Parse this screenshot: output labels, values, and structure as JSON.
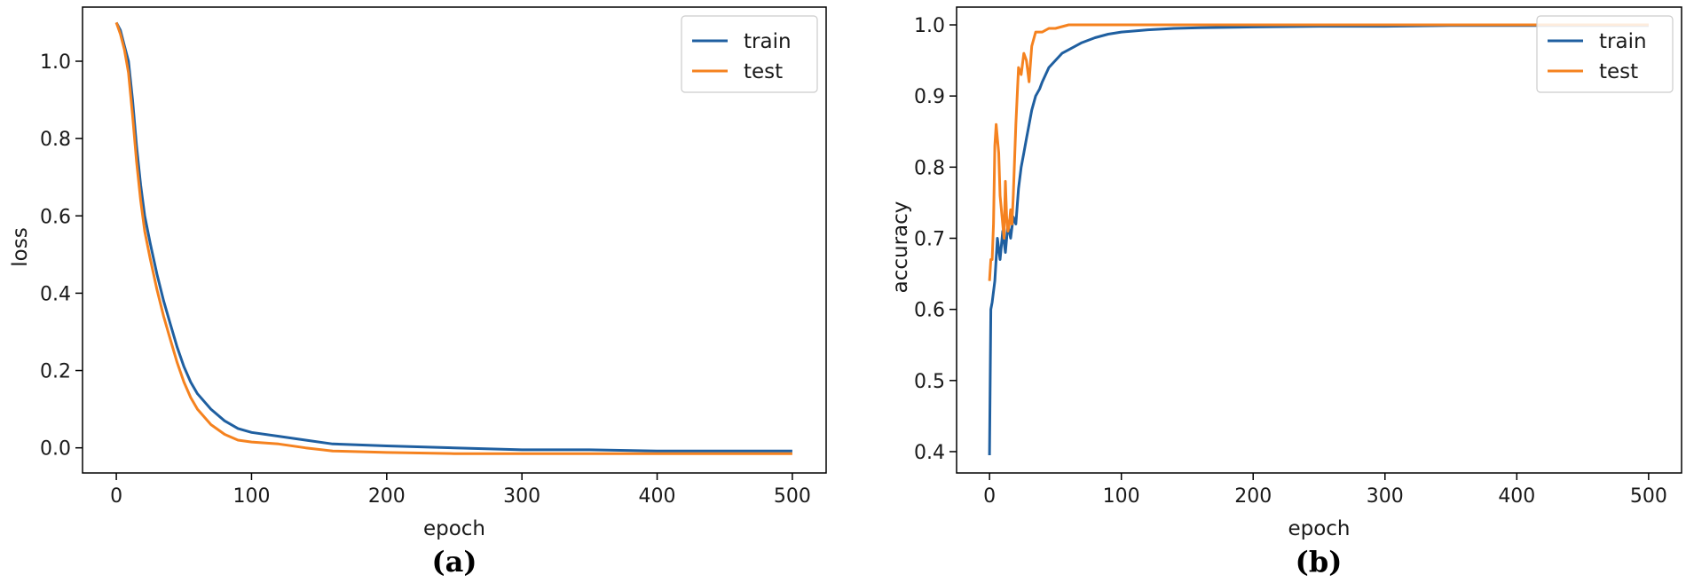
{
  "chart_data": [
    {
      "id": "a",
      "type": "line",
      "caption": "(a)",
      "xlabel": "epoch",
      "ylabel": "loss",
      "xlim": [
        -25,
        525
      ],
      "ylim": [
        -0.065,
        1.14
      ],
      "xticks": [
        0,
        100,
        200,
        300,
        400,
        500
      ],
      "xtick_labels": [
        "0",
        "100",
        "200",
        "300",
        "400",
        "500"
      ],
      "yticks": [
        0.0,
        0.2,
        0.4,
        0.6,
        0.8,
        1.0
      ],
      "ytick_labels": [
        "0.0",
        "0.2",
        "0.4",
        "0.6",
        "0.8",
        "1.0"
      ],
      "legend_position": "top-right",
      "series": [
        {
          "name": "train",
          "color": "#1f5fa0",
          "x": [
            0,
            3,
            6,
            9,
            12,
            15,
            18,
            21,
            25,
            30,
            35,
            40,
            45,
            50,
            55,
            60,
            70,
            80,
            90,
            100,
            120,
            140,
            160,
            200,
            250,
            300,
            350,
            400,
            450,
            500
          ],
          "y": [
            1.1,
            1.08,
            1.04,
            1.0,
            0.9,
            0.78,
            0.68,
            0.6,
            0.53,
            0.45,
            0.38,
            0.32,
            0.26,
            0.21,
            0.17,
            0.14,
            0.1,
            0.07,
            0.05,
            0.04,
            0.03,
            0.02,
            0.01,
            0.005,
            0.0,
            -0.005,
            -0.005,
            -0.008,
            -0.008,
            -0.008
          ]
        },
        {
          "name": "test",
          "color": "#f5821f",
          "x": [
            0,
            3,
            6,
            9,
            12,
            15,
            18,
            21,
            25,
            30,
            35,
            40,
            45,
            50,
            55,
            60,
            70,
            80,
            90,
            100,
            120,
            140,
            160,
            200,
            250,
            300,
            350,
            400,
            450,
            500
          ],
          "y": [
            1.1,
            1.07,
            1.03,
            0.97,
            0.86,
            0.74,
            0.64,
            0.56,
            0.49,
            0.41,
            0.34,
            0.28,
            0.22,
            0.17,
            0.13,
            0.1,
            0.06,
            0.035,
            0.02,
            0.015,
            0.01,
            0.0,
            -0.008,
            -0.012,
            -0.015,
            -0.015,
            -0.015,
            -0.015,
            -0.015,
            -0.015
          ]
        }
      ]
    },
    {
      "id": "b",
      "type": "line",
      "caption": "(b)",
      "xlabel": "epoch",
      "ylabel": "accuracy",
      "xlim": [
        -25,
        525
      ],
      "ylim": [
        0.37,
        1.025
      ],
      "xticks": [
        0,
        100,
        200,
        300,
        400,
        500
      ],
      "xtick_labels": [
        "0",
        "100",
        "200",
        "300",
        "400",
        "500"
      ],
      "yticks": [
        0.4,
        0.5,
        0.6,
        0.7,
        0.8,
        0.9,
        1.0
      ],
      "ytick_labels": [
        "0.4",
        "0.5",
        "0.6",
        "0.7",
        "0.8",
        "0.9",
        "1.0"
      ],
      "legend_position": "top-right",
      "series": [
        {
          "name": "train",
          "color": "#1f5fa0",
          "x": [
            0,
            1,
            2,
            4,
            6,
            8,
            10,
            12,
            14,
            16,
            18,
            20,
            22,
            24,
            26,
            28,
            30,
            32,
            35,
            38,
            40,
            45,
            50,
            55,
            60,
            70,
            80,
            90,
            100,
            120,
            140,
            160,
            200,
            250,
            300,
            350,
            400,
            450,
            500
          ],
          "y": [
            0.395,
            0.6,
            0.61,
            0.64,
            0.7,
            0.67,
            0.71,
            0.68,
            0.72,
            0.7,
            0.73,
            0.72,
            0.77,
            0.8,
            0.82,
            0.84,
            0.86,
            0.88,
            0.9,
            0.91,
            0.92,
            0.94,
            0.95,
            0.96,
            0.965,
            0.975,
            0.982,
            0.987,
            0.99,
            0.993,
            0.995,
            0.996,
            0.997,
            0.998,
            0.998,
            0.999,
            0.999,
            0.999,
            0.999
          ]
        },
        {
          "name": "test",
          "color": "#f5821f",
          "x": [
            0,
            1,
            2,
            3,
            4,
            5,
            6,
            7,
            8,
            9,
            10,
            11,
            12,
            13,
            14,
            15,
            16,
            17,
            18,
            20,
            22,
            24,
            26,
            28,
            30,
            32,
            35,
            40,
            45,
            50,
            60,
            70,
            80,
            100,
            150,
            200,
            300,
            400,
            500
          ],
          "y": [
            0.64,
            0.67,
            0.67,
            0.72,
            0.83,
            0.86,
            0.84,
            0.82,
            0.76,
            0.74,
            0.72,
            0.7,
            0.78,
            0.73,
            0.71,
            0.72,
            0.74,
            0.72,
            0.76,
            0.86,
            0.94,
            0.93,
            0.96,
            0.95,
            0.92,
            0.97,
            0.99,
            0.99,
            0.995,
            0.995,
            1.0,
            1.0,
            1.0,
            1.0,
            1.0,
            1.0,
            1.0,
            1.0,
            1.0
          ]
        }
      ]
    }
  ]
}
